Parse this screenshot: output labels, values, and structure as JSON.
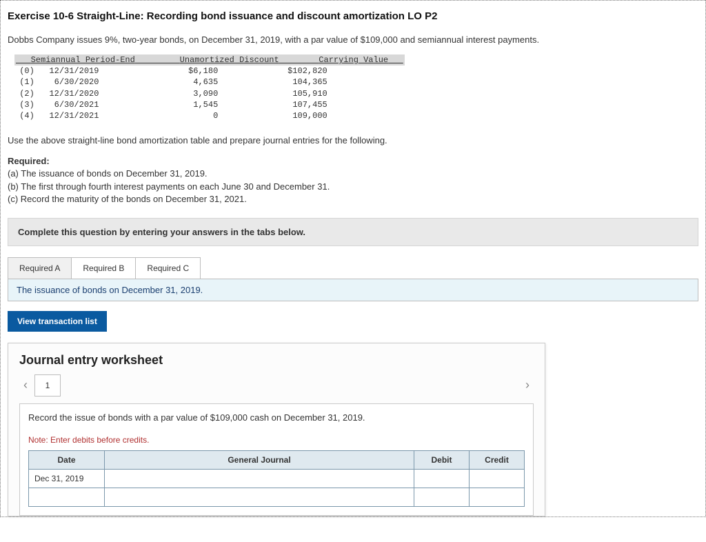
{
  "title": "Exercise 10-6 Straight-Line: Recording bond issuance and discount amortization LO P2",
  "intro": "Dobbs Company issues 9%, two-year bonds, on December 31, 2019, with a par value of $109,000 and semiannual interest payments.",
  "amort": {
    "headers": {
      "period": "Semiannual Period-End",
      "discount": "Unamortized Discount",
      "carrying": "Carrying Value"
    },
    "rows": [
      {
        "idx": "(0)",
        "date": "12/31/2019",
        "discount": "$6,180",
        "carrying": "$102,820"
      },
      {
        "idx": "(1)",
        "date": "6/30/2020",
        "discount": "4,635",
        "carrying": "104,365"
      },
      {
        "idx": "(2)",
        "date": "12/31/2020",
        "discount": "3,090",
        "carrying": "105,910"
      },
      {
        "idx": "(3)",
        "date": "6/30/2021",
        "discount": "1,545",
        "carrying": "107,455"
      },
      {
        "idx": "(4)",
        "date": "12/31/2021",
        "discount": "0",
        "carrying": "109,000"
      }
    ]
  },
  "instruction": "Use the above straight-line bond amortization table and prepare journal entries for the following.",
  "required": {
    "label": "Required:",
    "a": "(a) The issuance of bonds on December 31, 2019.",
    "b": "(b) The first through fourth interest payments on each June 30 and December 31.",
    "c": "(c) Record the maturity of the bonds on December 31, 2021."
  },
  "banner": "Complete this question by entering your answers in the tabs below.",
  "tabs": {
    "a": "Required A",
    "b": "Required B",
    "c": "Required C"
  },
  "tab_desc": "The issuance of bonds on December 31, 2019.",
  "view_trans": "View transaction list",
  "worksheet": {
    "title": "Journal entry worksheet",
    "step": "1",
    "instruction": "Record the issue of bonds with a par value of $109,000 cash on December 31, 2019.",
    "note": "Note: Enter debits before credits.",
    "columns": {
      "date": "Date",
      "gj": "General Journal",
      "debit": "Debit",
      "credit": "Credit"
    },
    "row_date": "Dec 31, 2019"
  }
}
